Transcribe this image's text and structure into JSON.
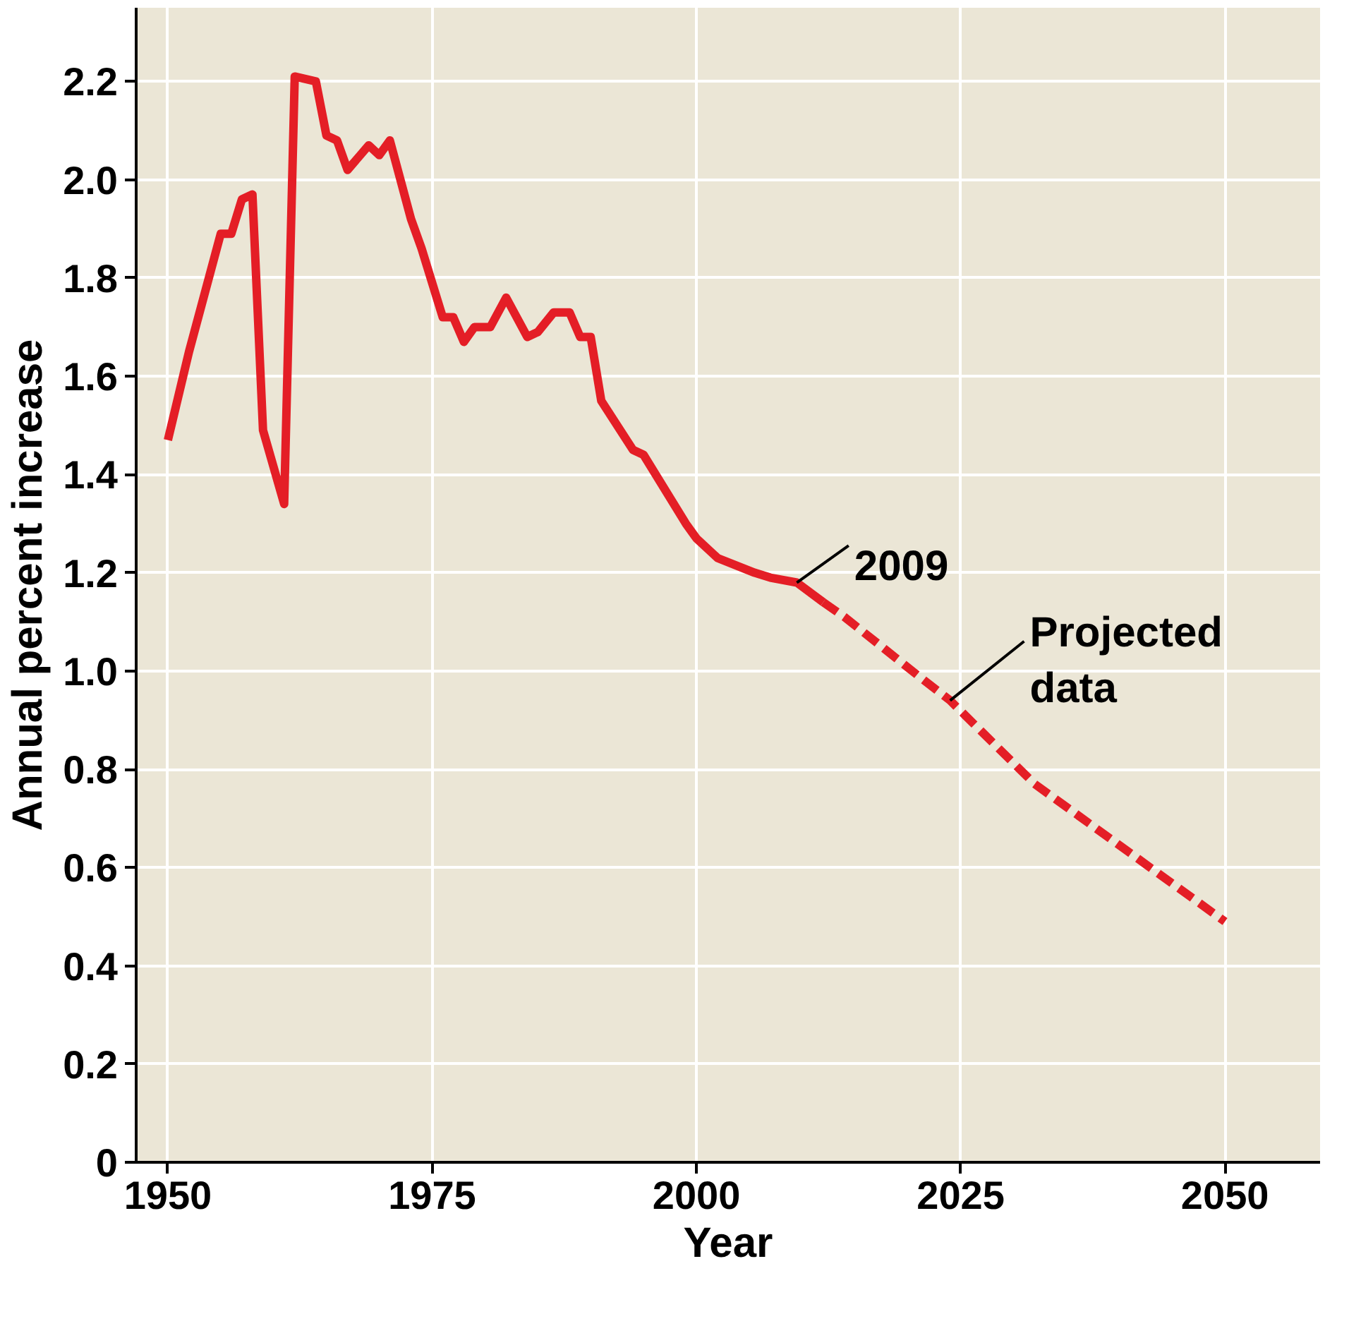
{
  "chart_data": {
    "type": "line",
    "xlabel": "Year",
    "ylabel": "Annual percent increase",
    "xlim": [
      1947,
      2059
    ],
    "ylim": [
      0,
      2.35
    ],
    "xticks": [
      1950,
      1975,
      2000,
      2025,
      2050
    ],
    "yticks": [
      0,
      0.2,
      0.4,
      0.6,
      0.8,
      {
        "value": 1,
        "label": "1.0"
      },
      1.2,
      1.4,
      1.6,
      1.8,
      {
        "value": 2,
        "label": "2.0"
      },
      2.2
    ],
    "grid": true,
    "series": [
      {
        "color": "#e41e26",
        "line_style": "solid",
        "x": [
          1950,
          1952,
          1955,
          1956,
          1957,
          1958,
          1959,
          1961,
          1962,
          1964,
          1965,
          1966,
          1967,
          1969,
          1970,
          1971,
          1973,
          1974,
          1976,
          1977,
          1978,
          1979,
          1980.5,
          1982,
          1984,
          1985,
          1986.5,
          1988,
          1989,
          1990,
          1991,
          1994,
          1995,
          1999,
          2000,
          2002,
          2005.5,
          2007,
          2009.5,
          2012
        ],
        "values": [
          1.47,
          1.65,
          1.89,
          1.89,
          1.96,
          1.97,
          1.49,
          1.34,
          2.21,
          2.2,
          2.09,
          2.08,
          2.02,
          2.07,
          2.05,
          2.08,
          1.92,
          1.86,
          1.72,
          1.72,
          1.67,
          1.7,
          1.7,
          1.76,
          1.68,
          1.69,
          1.73,
          1.73,
          1.68,
          1.68,
          1.55,
          1.45,
          1.44,
          1.3,
          1.27,
          1.23,
          1.2,
          1.19,
          1.18,
          1.14
        ]
      },
      {
        "color": "#e41e26",
        "line_style": "dashed",
        "x": [
          2012,
          2014,
          2021,
          2024,
          2032,
          2050
        ],
        "values": [
          1.14,
          1.11,
          0.99,
          0.94,
          0.77,
          0.49
        ]
      }
    ],
    "annotations": [
      {
        "text": "2009",
        "x": 2009.5,
        "y": 1.18
      },
      {
        "text": "Projected\ndata",
        "x": 2024,
        "y": 0.94
      }
    ]
  }
}
